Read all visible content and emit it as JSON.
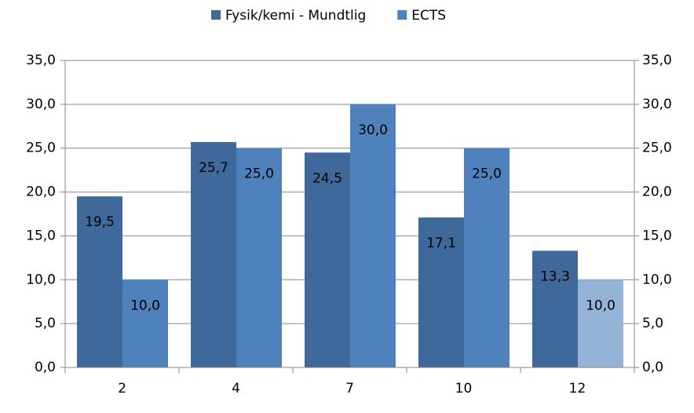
{
  "chart_data": {
    "type": "bar",
    "categories": [
      "2",
      "4",
      "7",
      "10",
      "12"
    ],
    "series": [
      {
        "name": "Fysik/kemi - Mundtlig",
        "color": "#3f689b",
        "values": [
          19.5,
          25.7,
          24.5,
          17.1,
          13.3
        ],
        "value_labels": [
          "19,5",
          "25,7",
          "24,5",
          "17,1",
          "13,3"
        ]
      },
      {
        "name": "ECTS",
        "color": "#4f81bd",
        "point_colors": [
          "#4f81bd",
          "#4f81bd",
          "#4f81bd",
          "#4f81bd",
          "#95b3d7"
        ],
        "values": [
          10,
          25,
          30,
          25,
          10
        ],
        "value_labels": [
          "10,0",
          "25,0",
          "30,0",
          "25,0",
          "10,0"
        ]
      }
    ],
    "ylim": [
      0,
      35
    ],
    "yticks": [
      {
        "value": 0,
        "label": "0,0"
      },
      {
        "value": 5,
        "label": "5,0"
      },
      {
        "value": 10,
        "label": "10,0"
      },
      {
        "value": 15,
        "label": "15,0"
      },
      {
        "value": 20,
        "label": "20,0"
      },
      {
        "value": 25,
        "label": "25,0"
      },
      {
        "value": 30,
        "label": "30,0"
      },
      {
        "value": 35,
        "label": "35,0"
      }
    ],
    "y2lim": [
      0,
      35
    ],
    "y2ticks": [
      {
        "value": 0,
        "label": "0,0"
      },
      {
        "value": 5,
        "label": "5,0"
      },
      {
        "value": 10,
        "label": "10,0"
      },
      {
        "value": 15,
        "label": "15,0"
      },
      {
        "value": 20,
        "label": "20,0"
      },
      {
        "value": 25,
        "label": "25,0"
      },
      {
        "value": 30,
        "label": "30,0"
      },
      {
        "value": 35,
        "label": "35,0"
      }
    ],
    "grid": true,
    "legend": "top"
  }
}
